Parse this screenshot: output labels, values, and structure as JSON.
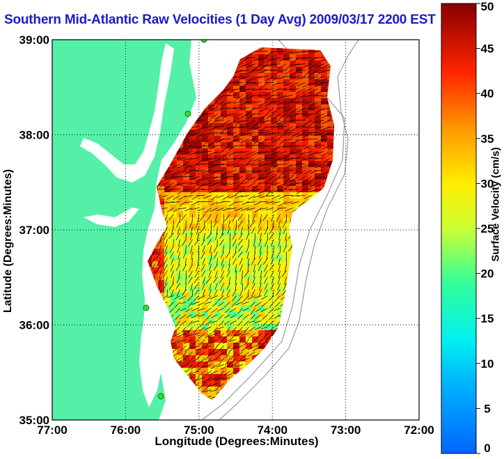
{
  "title": "Southern Mid-Atlantic Raw Velocities (1 Day Avg) 2009/03/17 2200 EST",
  "chart_data": {
    "type": "heatmap",
    "xlabel": "Longitude (Degrees:Minutes)",
    "ylabel": "Latitude (Degrees:Minutes)",
    "xlim": [
      -77,
      -72
    ],
    "ylim": [
      35,
      39
    ],
    "x_ticks": [
      -77,
      -76,
      -75,
      -74,
      -73,
      -72
    ],
    "x_tick_labels": [
      "77:00",
      "76:00",
      "75:00",
      "74:00",
      "73:00",
      "72:00"
    ],
    "y_ticks": [
      35,
      36,
      37,
      38,
      39
    ],
    "y_tick_labels": [
      "35:00",
      "36:00",
      "37:00",
      "38:00",
      "39:00"
    ],
    "grid": "dotted",
    "colorbar": {
      "label": "Surface Velocity (cm/s)",
      "range": [
        0,
        50
      ],
      "ticks": [
        0,
        5,
        10,
        15,
        20,
        25,
        30,
        35,
        40,
        45,
        50
      ],
      "tick_labels": [
        "0",
        "5",
        "10",
        "15",
        "20",
        "25",
        "30",
        "35",
        "40",
        "45",
        "50"
      ],
      "colormap": "jet"
    },
    "colors": {
      "land": "#55f0a8",
      "water": "#ffffff",
      "station": "#33dd33"
    },
    "stations": [
      {
        "lon": -74.93,
        "lat": 39.0
      },
      {
        "lon": -75.15,
        "lat": 38.22
      },
      {
        "lon": -75.72,
        "lat": 36.18
      },
      {
        "lon": -75.52,
        "lat": 35.25
      }
    ]
  }
}
